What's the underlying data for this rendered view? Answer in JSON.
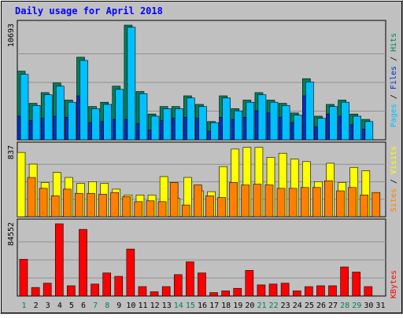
{
  "chart_data": {
    "type": "bar",
    "title": "Daily usage for April 2018",
    "categories": [
      "1",
      "2",
      "3",
      "4",
      "5",
      "6",
      "7",
      "8",
      "9",
      "10",
      "11",
      "12",
      "13",
      "14",
      "15",
      "16",
      "17",
      "18",
      "19",
      "20",
      "21",
      "22",
      "23",
      "24",
      "25",
      "26",
      "27",
      "28",
      "29",
      "30",
      "31"
    ],
    "weekend_days": [
      "1",
      "7",
      "8",
      "14",
      "15",
      "21",
      "22",
      "28",
      "29"
    ],
    "panels": [
      {
        "name": "hits-files-pages",
        "max_label": "10693",
        "ylim": [
          0,
          10693
        ],
        "side_label": [
          "Pages",
          "Files",
          "Hits"
        ],
        "series": [
          {
            "name": "Hits",
            "color": "#00805c",
            "values": [
              6400,
              3400,
              4400,
              5300,
              3700,
              7700,
              3100,
              3500,
              5000,
              10693,
              4500,
              2400,
              3100,
              3100,
              4100,
              3300,
              1700,
              4100,
              2900,
              3700,
              4400,
              3700,
              3400,
              2500,
              5700,
              2200,
              3300,
              3700,
              2400,
              1900,
              0
            ]
          },
          {
            "name": "Files",
            "color": "#00c0ff",
            "values": [
              6100,
              3200,
              4200,
              5000,
              3500,
              7400,
              2900,
              3300,
              4700,
              10500,
              4300,
              2200,
              2900,
              2900,
              3900,
              3100,
              1600,
              3900,
              2700,
              3500,
              4200,
              3500,
              3200,
              2300,
              5400,
              2000,
              3100,
              3500,
              2200,
              1700,
              0
            ]
          },
          {
            "name": "Pages",
            "color": "#0030c0",
            "values": [
              2200,
              1800,
              2000,
              2200,
              2100,
              4100,
              1600,
              1700,
              1900,
              1900,
              1500,
              900,
              1800,
              2000,
              2100,
              2000,
              800,
              2100,
              1900,
              2100,
              2700,
              2500,
              2100,
              1600,
              4100,
              1200,
              2400,
              2200,
              1400,
              1000,
              0
            ]
          }
        ]
      },
      {
        "name": "visits-sites",
        "max_label": "837",
        "ylim": [
          0,
          837
        ],
        "side_label": [
          "Sites",
          "Visits"
        ],
        "series": [
          {
            "name": "Visits",
            "color": "#ffff00",
            "values": [
              770,
              630,
              410,
              530,
              470,
              400,
              420,
              400,
              330,
              260,
              260,
              260,
              480,
              220,
              470,
              310,
              300,
              600,
              810,
              830,
              830,
              710,
              760,
              690,
              660,
              420,
              640,
              410,
              590,
              550,
              0
            ]
          },
          {
            "name": "Sites",
            "color": "#ff8000",
            "values": [
              470,
              340,
              250,
              330,
              280,
              280,
              270,
              290,
              240,
              180,
              190,
              180,
              410,
              140,
              380,
              250,
              230,
              410,
              380,
              390,
              380,
              340,
              340,
              350,
              350,
              430,
              310,
              350,
              260,
              290,
              0
            ]
          }
        ]
      },
      {
        "name": "kbytes",
        "max_label": "84552",
        "ylim": [
          0,
          84552
        ],
        "side_label": [
          "KBytes"
        ],
        "series": [
          {
            "name": "KBytes",
            "color": "#ff0000",
            "values": [
              43000,
              10000,
              15000,
              84552,
              12000,
              78000,
              14000,
              27000,
              23000,
              55000,
              11000,
              5000,
              11000,
              25000,
              40000,
              27000,
              4000,
              6000,
              9000,
              30000,
              13000,
              14000,
              15000,
              6000,
              11000,
              12000,
              12000,
              34000,
              28000,
              11000,
              0
            ]
          }
        ]
      }
    ],
    "grid": true,
    "xlabel": "",
    "ylabel": ""
  },
  "colors": {
    "background": "#c0c0c0",
    "frame": "#000000",
    "title": "#0000ff",
    "grid": "#909090",
    "weekday_label": "#000000",
    "weekend_label": "#00805c"
  }
}
